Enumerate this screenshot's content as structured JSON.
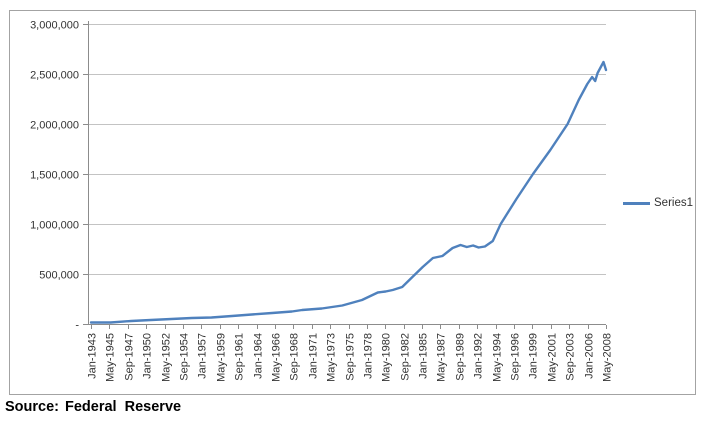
{
  "source": {
    "prefix": "Source:",
    "text": "Federal  Reserve"
  },
  "colors": {
    "series_line": "#4F81BD",
    "gridline": "#c3c3c3",
    "axis_line": "#8c8c8c",
    "tick_mark": "#8c8c8c",
    "axis_text": "#333333",
    "frame_border": "#a3a3a3",
    "background": "#ffffff"
  },
  "chart_data": {
    "type": "line",
    "title": "",
    "xlabel": "",
    "ylabel": "",
    "grid": "horizontal",
    "legend": {
      "position": "right",
      "entries": [
        {
          "label": "Series1",
          "color": "#4F81BD"
        }
      ]
    },
    "y_axis": {
      "range": [
        0,
        3000000
      ],
      "tick_interval": 500000,
      "tick_labels_bottom_to_top": [
        "-",
        "500,000",
        "1,000,000",
        "1,500,000",
        "2,000,000",
        "2,500,000",
        "3,000,000"
      ]
    },
    "x_axis": {
      "label_rotation_deg": -90,
      "first_label": "Jan-1943",
      "last_label": "May-2008",
      "label_interval_months": 28,
      "tick_labels": [
        "Jan-1943",
        "May-1945",
        "Sep-1947",
        "Jan-1950",
        "May-1952",
        "Sep-1954",
        "Jan-1957",
        "May-1959",
        "Sep-1961",
        "Jan-1964",
        "May-1966",
        "Sep-1968",
        "Jan-1971",
        "May-1973",
        "Sep-1975",
        "Jan-1978",
        "May-1980",
        "Sep-1982",
        "Jan-1985",
        "May-1987",
        "Sep-1989",
        "Jan-1992",
        "May-1994",
        "Sep-1996",
        "Jan-1999",
        "May-2001",
        "Sep-2003",
        "Jan-2006",
        "May-2008"
      ]
    },
    "x_range_years": [
      1943.0,
      2008.37
    ],
    "series": [
      {
        "name": "Series1",
        "color": "#4F81BD",
        "points_year_value": [
          [
            1943.0,
            15000
          ],
          [
            1945.5,
            15000
          ],
          [
            1948.1,
            30000
          ],
          [
            1950.6,
            40000
          ],
          [
            1953.2,
            50000
          ],
          [
            1955.8,
            60000
          ],
          [
            1958.3,
            65000
          ],
          [
            1960.9,
            80000
          ],
          [
            1963.4,
            95000
          ],
          [
            1966.0,
            110000
          ],
          [
            1968.5,
            125000
          ],
          [
            1969.8,
            140000
          ],
          [
            1972.3,
            155000
          ],
          [
            1974.9,
            185000
          ],
          [
            1977.4,
            240000
          ],
          [
            1979.4,
            315000
          ],
          [
            1980.4,
            325000
          ],
          [
            1981.3,
            340000
          ],
          [
            1982.5,
            370000
          ],
          [
            1983.8,
            470000
          ],
          [
            1985.1,
            570000
          ],
          [
            1986.4,
            660000
          ],
          [
            1987.6,
            680000
          ],
          [
            1988.9,
            760000
          ],
          [
            1989.9,
            790000
          ],
          [
            1990.7,
            770000
          ],
          [
            1991.5,
            785000
          ],
          [
            1992.2,
            765000
          ],
          [
            1993.0,
            775000
          ],
          [
            1994.0,
            830000
          ],
          [
            1995.0,
            1000000
          ],
          [
            1997.0,
            1250000
          ],
          [
            1999.1,
            1500000
          ],
          [
            2001.3,
            1740000
          ],
          [
            2003.5,
            2000000
          ],
          [
            2004.9,
            2240000
          ],
          [
            2006.0,
            2400000
          ],
          [
            2006.6,
            2470000
          ],
          [
            2007.0,
            2430000
          ],
          [
            2007.3,
            2510000
          ],
          [
            2008.05,
            2620000
          ],
          [
            2008.37,
            2540000
          ]
        ]
      }
    ]
  }
}
